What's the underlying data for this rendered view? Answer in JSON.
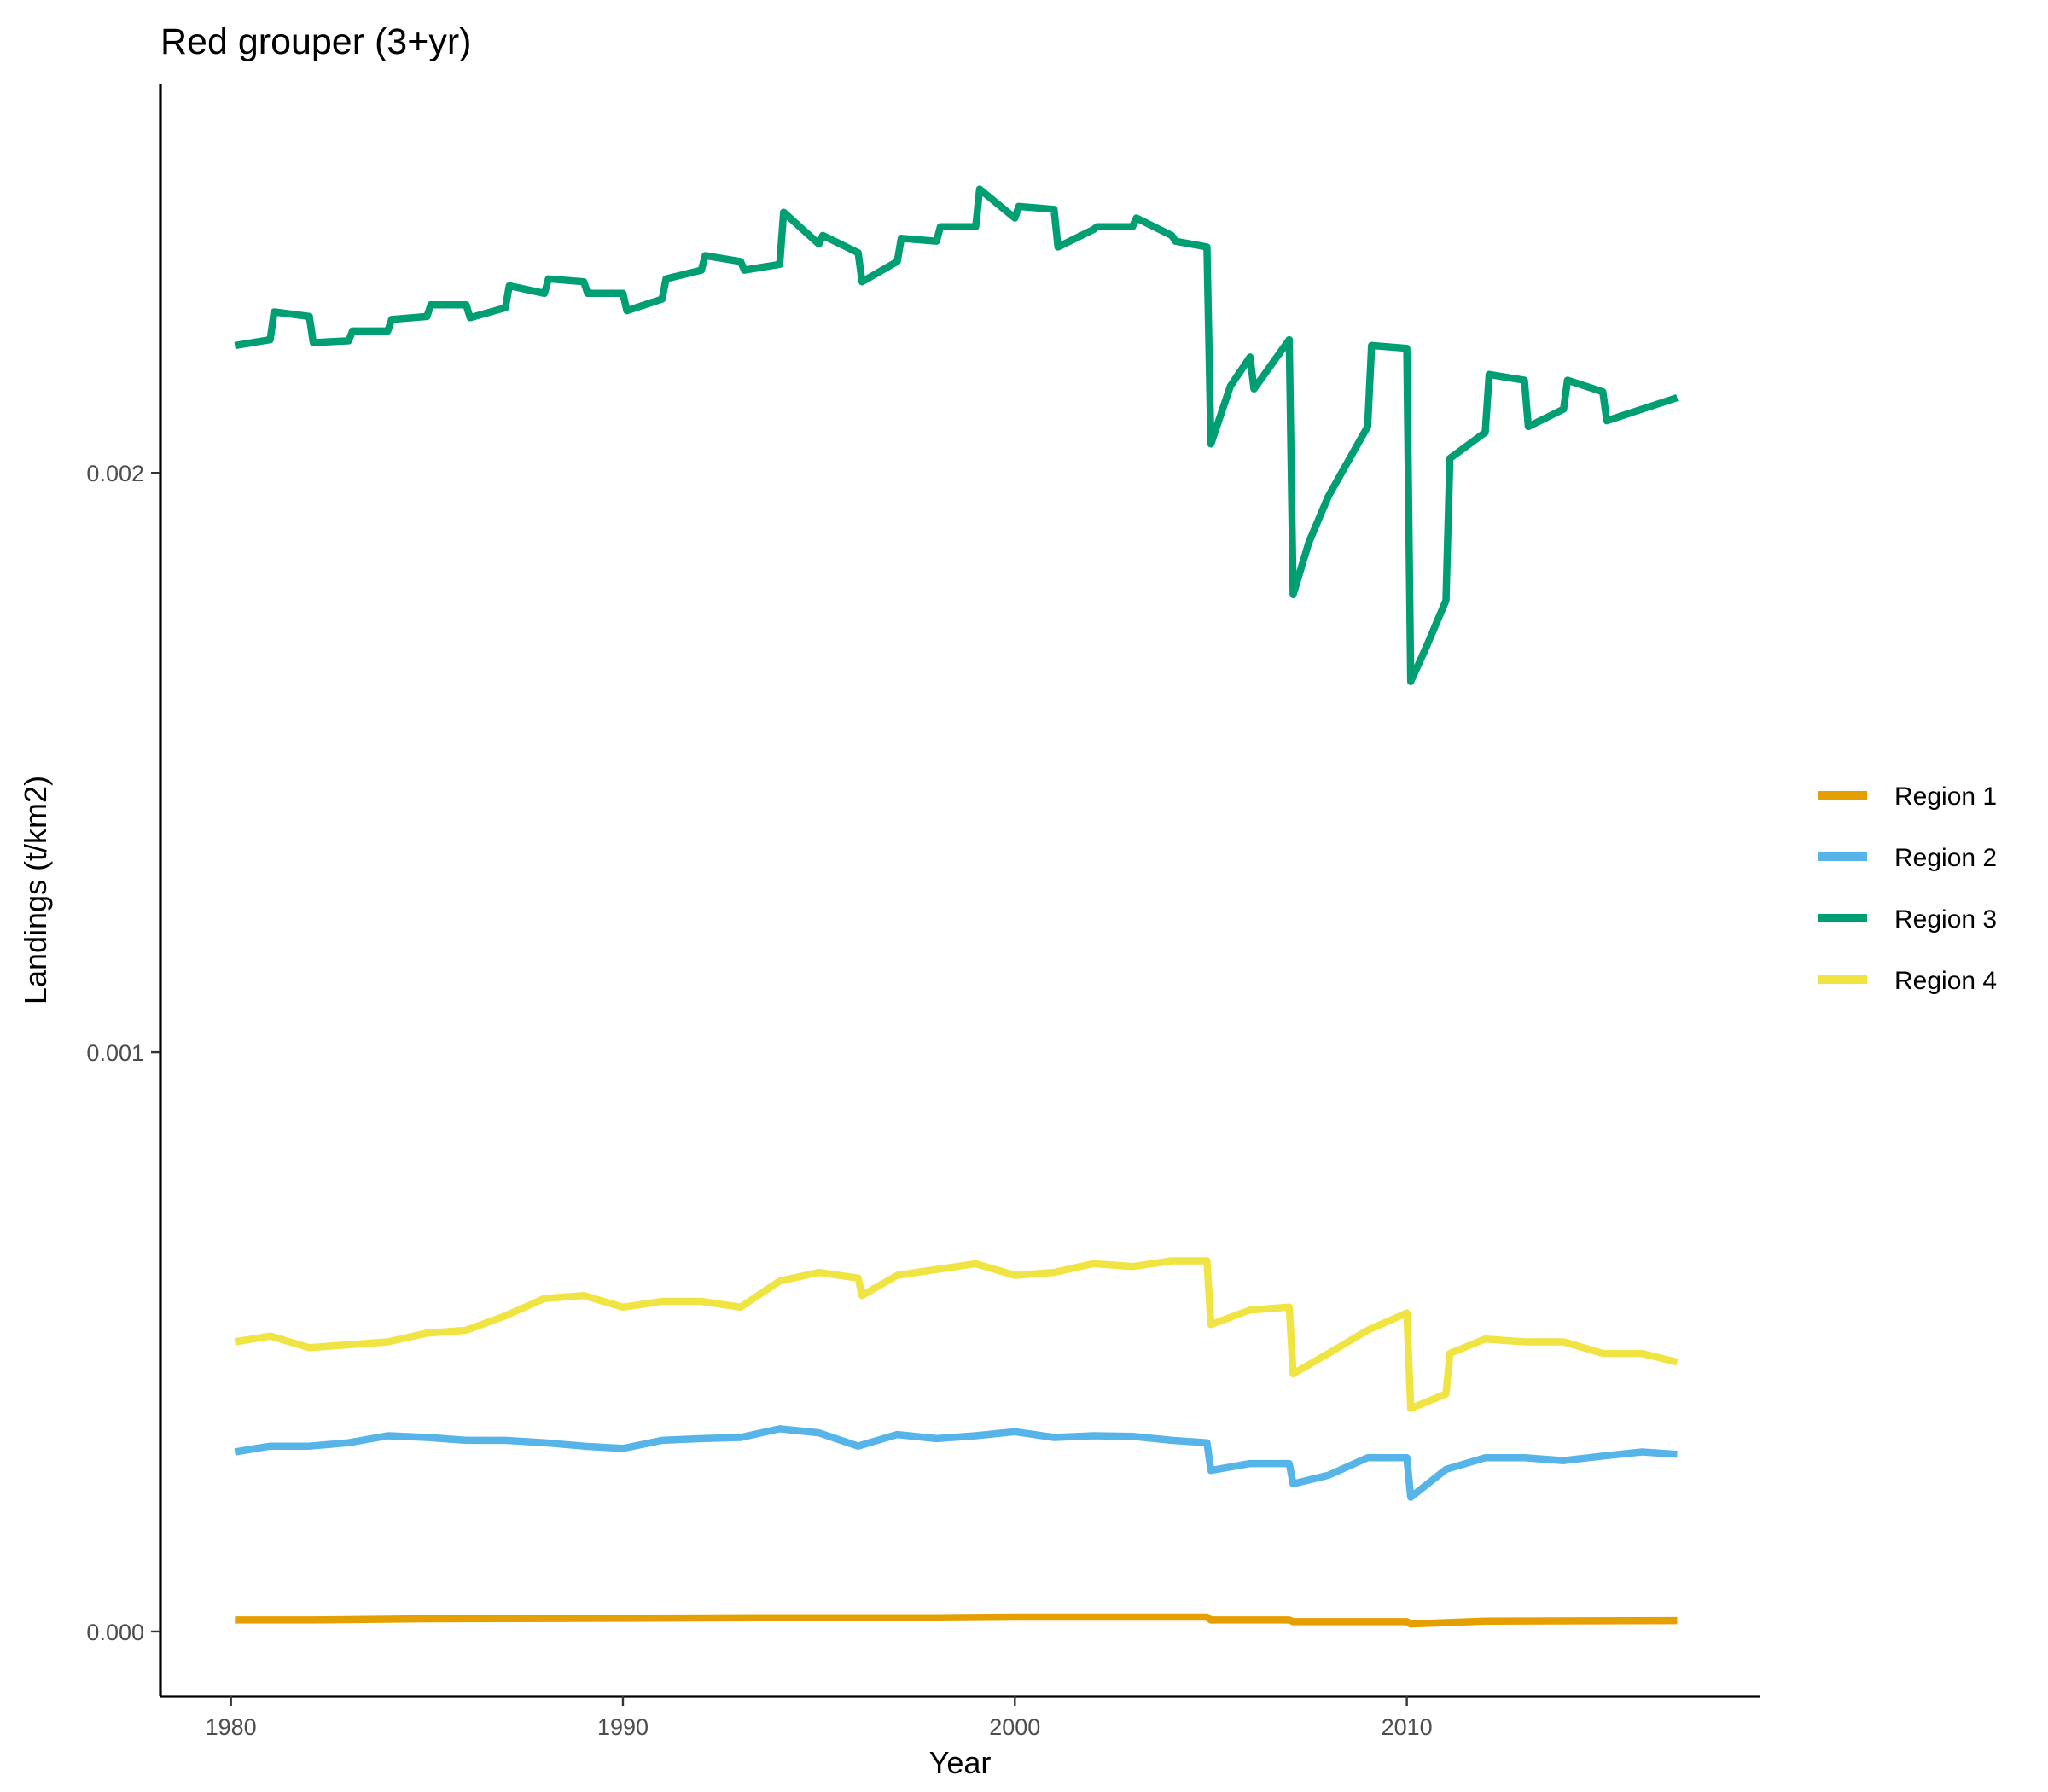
{
  "chart_data": {
    "type": "line",
    "title": "Red grouper (3+yr)",
    "xlabel": "Year",
    "ylabel": "Landings (t/km2)",
    "xlim": [
      1978.2,
      2019.0
    ],
    "ylim": [
      -0.000112,
      0.002672
    ],
    "x_ticks": [
      1980,
      1990,
      2000,
      2010
    ],
    "x_tick_labels": [
      "1980",
      "1990",
      "2000",
      "2010"
    ],
    "y_ticks": [
      0.0,
      0.001,
      0.002
    ],
    "y_tick_labels": [
      "0.000",
      "0.001",
      "0.002"
    ],
    "grid": false,
    "legend_position": "right",
    "series": [
      {
        "name": "Region 1",
        "color": "#E69F00",
        "x": [
          1980.1,
          1982,
          1985,
          1990,
          1994,
          1998,
          2000,
          2004.9,
          2005.0,
          2007,
          2007.1,
          2010,
          2010.1,
          2012,
          2016.9
        ],
        "y": [
          2e-05,
          2e-05,
          2.2e-05,
          2.3e-05,
          2.4e-05,
          2.4e-05,
          2.5e-05,
          2.5e-05,
          2e-05,
          2e-05,
          1.7e-05,
          1.7e-05,
          1.3e-05,
          1.8e-05,
          1.9e-05
        ]
      },
      {
        "name": "Region 2",
        "color": "#56B4E9",
        "x": [
          1980.1,
          1981,
          1982,
          1983,
          1984,
          1985,
          1986,
          1987,
          1988,
          1989,
          1990,
          1991,
          1992,
          1993,
          1994,
          1995,
          1996,
          1997,
          1998,
          1999,
          2000,
          2001,
          2002,
          2003,
          2004,
          2004.9,
          2005.0,
          2006,
          2007,
          2007.1,
          2008,
          2009,
          2010,
          2010.1,
          2011,
          2012,
          2013,
          2014,
          2015,
          2016,
          2016.9
        ],
        "y": [
          0.00031,
          0.00032,
          0.00032,
          0.000326,
          0.000338,
          0.000335,
          0.00033,
          0.00033,
          0.000326,
          0.00032,
          0.000316,
          0.00033,
          0.000333,
          0.000335,
          0.00035,
          0.000343,
          0.00032,
          0.00034,
          0.000333,
          0.000338,
          0.000345,
          0.000335,
          0.000338,
          0.000337,
          0.00033,
          0.000326,
          0.000278,
          0.00029,
          0.00029,
          0.000255,
          0.00027,
          0.0003,
          0.0003,
          0.000232,
          0.00028,
          0.0003,
          0.0003,
          0.000295,
          0.000303,
          0.00031,
          0.000306
        ]
      },
      {
        "name": "Region 3",
        "color": "#009E73",
        "x": [
          1980.1,
          1981,
          1981.1,
          1982,
          1982.1,
          1983,
          1983.1,
          1984,
          1984.1,
          1985,
          1985.1,
          1986,
          1986.1,
          1987,
          1987.1,
          1988,
          1988.1,
          1989,
          1989.1,
          1990,
          1990.1,
          1991,
          1991.1,
          1992,
          1992.1,
          1993,
          1993.1,
          1994,
          1994.1,
          1995,
          1995.1,
          1996,
          1996.1,
          1997,
          1997.1,
          1998,
          1998.1,
          1999,
          1999.1,
          2000,
          2000.1,
          2001,
          2001.1,
          2002,
          2002.1,
          2003,
          2003.1,
          2004,
          2004.1,
          2004.9,
          2005.0,
          2005.5,
          2006,
          2006.1,
          2007,
          2007.1,
          2007.5,
          2008,
          2009,
          2009.1,
          2010,
          2010.1,
          2010.5,
          2011,
          2011.1,
          2012,
          2012.1,
          2013,
          2013.1,
          2014,
          2014.1,
          2015,
          2015.1,
          2016,
          2016.9
        ],
        "y": [
          0.00222,
          0.00223,
          0.002278,
          0.00227,
          0.002225,
          0.002228,
          0.002245,
          0.002245,
          0.002265,
          0.00227,
          0.00229,
          0.00229,
          0.002268,
          0.002285,
          0.002323,
          0.00231,
          0.002335,
          0.00233,
          0.00231,
          0.00231,
          0.00228,
          0.0023,
          0.002335,
          0.00235,
          0.002375,
          0.002365,
          0.00235,
          0.00236,
          0.00245,
          0.002395,
          0.00241,
          0.00238,
          0.00233,
          0.002365,
          0.002405,
          0.0024,
          0.002425,
          0.002425,
          0.00249,
          0.00244,
          0.00246,
          0.002455,
          0.00239,
          0.00242,
          0.002425,
          0.002425,
          0.00244,
          0.00241,
          0.0024,
          0.00239,
          0.00205,
          0.00215,
          0.0022,
          0.002145,
          0.00223,
          0.00179,
          0.00188,
          0.00196,
          0.00208,
          0.00222,
          0.002215,
          0.00164,
          0.0017,
          0.00178,
          0.002025,
          0.00207,
          0.00217,
          0.00216,
          0.00208,
          0.00211,
          0.00216,
          0.00214,
          0.00209,
          0.00211,
          0.00213
        ]
      },
      {
        "name": "Region 4",
        "color": "#F0E442",
        "x": [
          1980.1,
          1981,
          1982,
          1983,
          1984,
          1985,
          1986,
          1987,
          1988,
          1989,
          1990,
          1991,
          1992,
          1993,
          1994,
          1995,
          1996,
          1996.1,
          1997,
          1998,
          1999,
          2000,
          2001,
          2002,
          2003,
          2004,
          2004.9,
          2005.0,
          2006,
          2007,
          2007.1,
          2008,
          2009,
          2010,
          2010.1,
          2011,
          2011.1,
          2012,
          2013,
          2014,
          2015,
          2016,
          2016.9
        ],
        "y": [
          0.0005,
          0.00051,
          0.00049,
          0.000495,
          0.0005,
          0.000515,
          0.00052,
          0.000545,
          0.000575,
          0.00058,
          0.00056,
          0.00057,
          0.00057,
          0.00056,
          0.000605,
          0.00062,
          0.00061,
          0.00058,
          0.000615,
          0.000625,
          0.000635,
          0.000615,
          0.00062,
          0.000635,
          0.00063,
          0.00064,
          0.00064,
          0.00053,
          0.000555,
          0.00056,
          0.000445,
          0.00048,
          0.00052,
          0.00055,
          0.000385,
          0.00041,
          0.00048,
          0.000505,
          0.0005,
          0.0005,
          0.00048,
          0.00048,
          0.000465
        ]
      }
    ]
  }
}
